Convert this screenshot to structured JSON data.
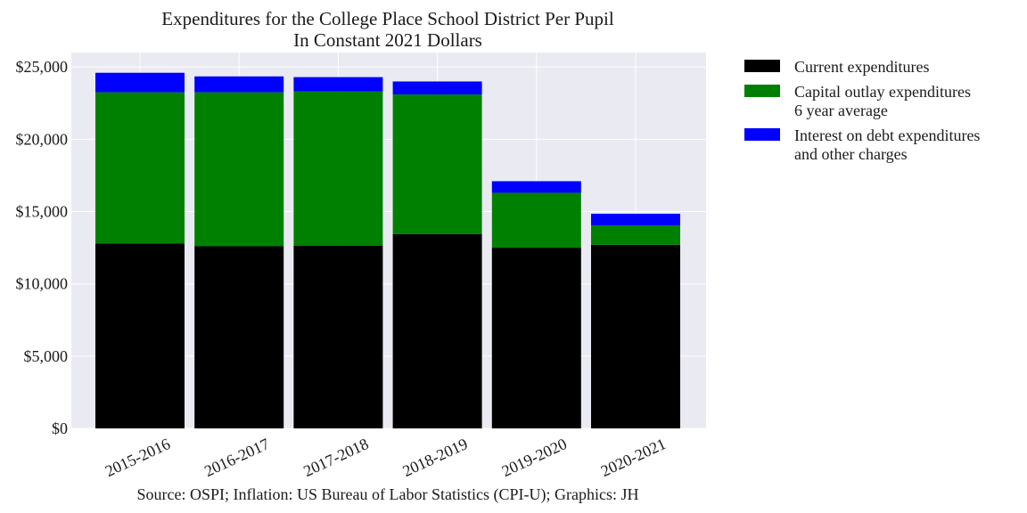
{
  "chart_data": {
    "type": "bar",
    "stacked": true,
    "title": "Expenditures for the College Place School District Per Pupil",
    "subtitle": "In Constant 2021 Dollars",
    "xlabel": "",
    "ylabel": "",
    "ylim": [
      0,
      26000
    ],
    "yticks": [
      "$0",
      "$5,000",
      "$10,000",
      "$15,000",
      "$20,000",
      "$25,000"
    ],
    "ytick_values": [
      0,
      5000,
      10000,
      15000,
      20000,
      25000
    ],
    "categories": [
      "2015-2016",
      "2016-2017",
      "2017-2018",
      "2018-2019",
      "2019-2020",
      "2020-2021"
    ],
    "series": [
      {
        "name": "Current expenditures",
        "color": "#000000",
        "values": [
          12800,
          12600,
          12650,
          13450,
          12500,
          12700
        ]
      },
      {
        "name": "Capital outlay expenditures 6 year average",
        "color": "#008000",
        "values": [
          10450,
          10650,
          10650,
          9650,
          3800,
          1350
        ]
      },
      {
        "name": "Interest on debt expenditures and other charges",
        "color": "#0000ff",
        "values": [
          1350,
          1100,
          1000,
          900,
          800,
          800
        ]
      }
    ],
    "legend": {
      "placement": "outside-right",
      "entries": [
        {
          "lines": [
            "Current expenditures"
          ],
          "color": "#000000"
        },
        {
          "lines": [
            "Capital outlay expenditures",
            "6 year average"
          ],
          "color": "#008000"
        },
        {
          "lines": [
            "Interest on debt expenditures",
            "and other charges"
          ],
          "color": "#0000ff"
        }
      ]
    },
    "grid": true,
    "background": "#eaeaf2",
    "source": "Source: OSPI; Inflation: US Bureau of Labor Statistics (CPI-U); Graphics: JH"
  }
}
